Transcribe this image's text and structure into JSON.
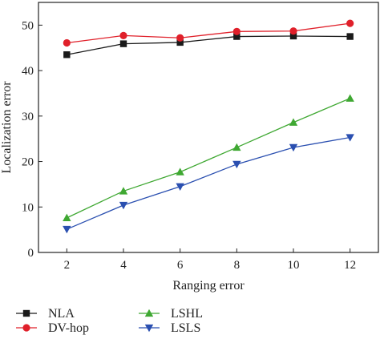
{
  "chart_data": {
    "type": "line",
    "xlabel": "Ranging error",
    "ylabel": "Localization error",
    "x": [
      2,
      4,
      6,
      8,
      10,
      12
    ],
    "xticks": [
      2,
      4,
      6,
      8,
      10,
      12
    ],
    "xlim": [
      1,
      13
    ],
    "ylim": [
      0,
      55
    ],
    "yticks": [
      0,
      10,
      20,
      30,
      40,
      50
    ],
    "grid": false,
    "legend_position": "bottom",
    "series": [
      {
        "name": "NLA",
        "values": [
          43.5,
          45.9,
          46.2,
          47.5,
          47.6,
          47.5
        ],
        "color": "#1a1a1a",
        "marker": "square"
      },
      {
        "name": "DV-hop",
        "values": [
          46.1,
          47.7,
          47.2,
          48.6,
          48.7,
          50.4
        ],
        "color": "#e0202a",
        "marker": "circle"
      },
      {
        "name": "LSHL",
        "values": [
          7.6,
          13.5,
          17.7,
          23.1,
          28.6,
          33.9
        ],
        "color": "#3fa832",
        "marker": "triangle-up"
      },
      {
        "name": "LSLS",
        "values": [
          5.1,
          10.4,
          14.5,
          19.4,
          23.1,
          25.3
        ],
        "color": "#2a4fb0",
        "marker": "triangle-down"
      }
    ]
  }
}
